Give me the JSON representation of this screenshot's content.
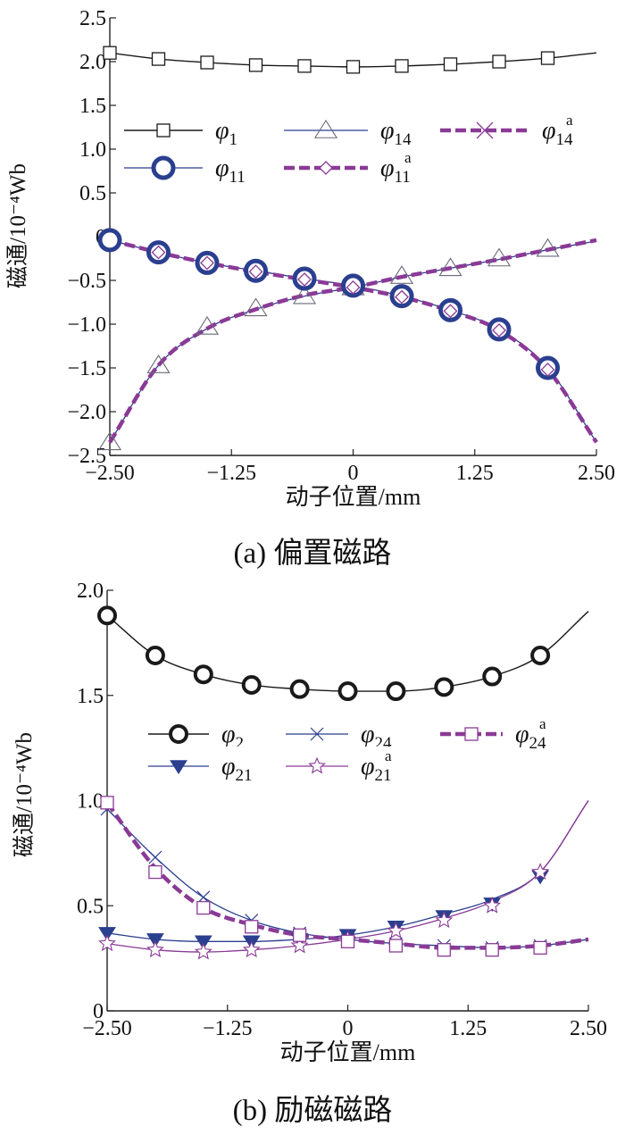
{
  "colors": {
    "black": "#1a1a1a",
    "blue": "#2b3f8f",
    "purple": "#8a3a96"
  },
  "chart_data": [
    {
      "type": "line",
      "caption": "(a)  偏置磁路",
      "xlabel": "动子位置/mm",
      "ylabel": "磁通/10⁻⁴Wb",
      "xticks": [
        "−2.50",
        "−1.25",
        "0",
        "1.25",
        "2.50"
      ],
      "xtick_values": [
        -2.5,
        -1.25,
        0,
        1.25,
        2.5
      ],
      "yticks": [
        "−2.5",
        "−2.0",
        "−1.5",
        "−1.0",
        "−0.5",
        "0",
        "0.5",
        "1.0",
        "1.5",
        "2.0",
        "2.5"
      ],
      "ytick_values": [
        -2.5,
        -2.0,
        -1.5,
        -1.0,
        -0.5,
        0,
        0.5,
        1.0,
        1.5,
        2.0,
        2.5
      ],
      "xlim": [
        -2.5,
        2.5
      ],
      "ylim": [
        -2.5,
        2.5
      ],
      "grid": false,
      "legend_position": "upper-middle",
      "series": [
        {
          "name": "φ1",
          "legend": [
            "φ",
            "1",
            ""
          ],
          "color": "#1a1a1a",
          "dash": "solid",
          "width": 1.4,
          "marker": "square",
          "msize": 7,
          "mwidth": 1.3,
          "x": [
            -2.5,
            -2.0,
            -1.5,
            -1.0,
            -0.5,
            0,
            0.5,
            1.0,
            1.5,
            2.0,
            2.5
          ],
          "y": [
            2.1,
            2.03,
            1.99,
            1.96,
            1.95,
            1.94,
            1.95,
            1.97,
            2.0,
            2.04,
            2.1
          ],
          "mx": [
            -2.5,
            -2.0,
            -1.5,
            -1.0,
            -0.5,
            0,
            0.5,
            1.0,
            1.5,
            2.0
          ],
          "my": [
            2.1,
            2.03,
            1.99,
            1.96,
            1.95,
            1.94,
            1.95,
            1.97,
            2.0,
            2.04
          ]
        },
        {
          "name": "φ14",
          "legend": [
            "φ",
            "14",
            ""
          ],
          "color": "#2b3f8f",
          "dash": "solid",
          "width": 1.3,
          "marker": "triangle",
          "msize": 11,
          "mwidth": 1.1,
          "mcolor": "#6a6a7a",
          "x": [
            -2.5,
            -2.0,
            -1.5,
            -1.0,
            -0.5,
            0,
            0.5,
            1.0,
            1.5,
            2.0,
            2.5
          ],
          "y": [
            -2.35,
            -1.47,
            -1.05,
            -0.83,
            -0.68,
            -0.58,
            -0.46,
            -0.36,
            -0.26,
            -0.15,
            -0.05
          ],
          "mx": [
            -2.5,
            -2.0,
            -1.5,
            -1.0,
            -0.5,
            0,
            0.5,
            1.0,
            1.5,
            2.0
          ],
          "my": [
            -2.35,
            -1.47,
            -1.03,
            -0.82,
            -0.68,
            -0.58,
            -0.45,
            -0.36,
            -0.25,
            -0.14
          ]
        },
        {
          "name": "φ14a",
          "legend": [
            "φ",
            "14",
            "a"
          ],
          "color": "#8a3a96",
          "dash": "12 5",
          "width": 4.5,
          "marker": "x",
          "msize": 9,
          "mwidth": 1.3,
          "x": [
            -2.5,
            -2.0,
            -1.5,
            -1.0,
            -0.5,
            0,
            0.5,
            1.0,
            1.5,
            2.0,
            2.5
          ],
          "y": [
            -2.35,
            -1.47,
            -1.05,
            -0.83,
            -0.67,
            -0.58,
            -0.46,
            -0.36,
            -0.26,
            -0.15,
            -0.04
          ],
          "mx": [],
          "my": []
        },
        {
          "name": "φ11",
          "legend": [
            "φ",
            "11",
            ""
          ],
          "color": "#2b3f8f",
          "dash": "solid",
          "width": 1.3,
          "marker": "circle",
          "msize": 11,
          "mwidth": 5,
          "x": [
            -2.5,
            -2.0,
            -1.5,
            -1.0,
            -0.5,
            0,
            0.5,
            1.0,
            1.5,
            2.0,
            2.5
          ],
          "y": [
            -0.04,
            -0.18,
            -0.3,
            -0.39,
            -0.48,
            -0.56,
            -0.68,
            -0.84,
            -1.06,
            -1.5,
            -2.35
          ],
          "mx": [
            -2.5,
            -2.0,
            -1.5,
            -1.0,
            -0.5,
            0,
            0.5,
            1.0,
            1.5,
            2.0
          ],
          "my": [
            -0.04,
            -0.18,
            -0.3,
            -0.39,
            -0.48,
            -0.56,
            -0.68,
            -0.84,
            -1.06,
            -1.5
          ]
        },
        {
          "name": "φ11a",
          "legend": [
            "φ",
            "11",
            "a"
          ],
          "color": "#8a3a96",
          "dash": "12 5",
          "width": 4.5,
          "marker": "diamond",
          "msize": 7,
          "mwidth": 1.3,
          "x": [
            -2.5,
            -2.0,
            -1.5,
            -1.0,
            -0.5,
            0,
            0.5,
            1.0,
            1.5,
            2.0,
            2.5
          ],
          "y": [
            -0.04,
            -0.18,
            -0.3,
            -0.4,
            -0.49,
            -0.58,
            -0.69,
            -0.85,
            -1.07,
            -1.52,
            -2.35
          ],
          "mx": [
            -2.0,
            -1.5,
            -1.0,
            -0.5,
            0,
            0.5,
            1.0,
            1.5,
            2.0
          ],
          "my": [
            -0.18,
            -0.3,
            -0.4,
            -0.49,
            -0.58,
            -0.69,
            -0.85,
            -1.07,
            -1.52
          ]
        }
      ]
    },
    {
      "type": "line",
      "caption": "(b)  励磁磁路",
      "xlabel": "动子位置/mm",
      "ylabel": "磁通/10⁻⁴Wb",
      "xticks": [
        "−2.50",
        "−1.25",
        "0",
        "1.25",
        "2.50"
      ],
      "xtick_values": [
        -2.5,
        -1.25,
        0,
        1.25,
        2.5
      ],
      "yticks": [
        "0",
        "0.5",
        "1.0",
        "1.5",
        "2.0"
      ],
      "ytick_values": [
        0,
        0.5,
        1.0,
        1.5,
        2.0
      ],
      "xlim": [
        -2.5,
        2.5
      ],
      "ylim": [
        0,
        2.0
      ],
      "grid": false,
      "legend_position": "middle",
      "series": [
        {
          "name": "φ2",
          "legend": [
            "φ",
            "2",
            ""
          ],
          "color": "#1a1a1a",
          "dash": "solid",
          "width": 1.4,
          "marker": "circle",
          "msize": 9,
          "mwidth": 4,
          "x": [
            -2.5,
            -2.0,
            -1.5,
            -1.0,
            -0.5,
            0,
            0.5,
            1.0,
            1.5,
            2.0,
            2.5
          ],
          "y": [
            1.88,
            1.69,
            1.6,
            1.55,
            1.53,
            1.52,
            1.52,
            1.54,
            1.59,
            1.69,
            1.9
          ],
          "mx": [
            -2.5,
            -2.0,
            -1.5,
            -1.0,
            -0.5,
            0,
            0.5,
            1.0,
            1.5,
            2.0
          ],
          "my": [
            1.88,
            1.69,
            1.6,
            1.55,
            1.53,
            1.52,
            1.52,
            1.54,
            1.59,
            1.69
          ]
        },
        {
          "name": "φ21",
          "legend": [
            "φ",
            "21",
            ""
          ],
          "color": "#2b3f8f",
          "dash": "solid",
          "width": 1.3,
          "marker": "triangle-down",
          "msize": 9,
          "mwidth": 1,
          "x": [
            -2.5,
            -2.0,
            -1.5,
            -1.0,
            -0.5,
            0,
            0.5,
            1.0,
            1.5,
            2.0,
            2.5
          ],
          "y": [
            0.37,
            0.34,
            0.33,
            0.33,
            0.34,
            0.36,
            0.4,
            0.46,
            0.53,
            0.66,
            1.0
          ],
          "mx": [
            -2.5,
            -2.0,
            -1.5,
            -1.0,
            -0.5,
            0,
            0.5,
            1.0,
            1.5,
            2.0
          ],
          "my": [
            0.37,
            0.34,
            0.33,
            0.33,
            0.34,
            0.36,
            0.4,
            0.45,
            0.51,
            0.64
          ]
        },
        {
          "name": "φ21a",
          "legend": [
            "φ",
            "21",
            "a"
          ],
          "color": "#8a3a96",
          "dash": "solid",
          "width": 1.3,
          "marker": "star",
          "msize": 9,
          "mwidth": 1.1,
          "x": [
            -2.5,
            -2.0,
            -1.5,
            -1.0,
            -0.5,
            0,
            0.5,
            1.0,
            1.5,
            2.0,
            2.5
          ],
          "y": [
            0.32,
            0.29,
            0.28,
            0.29,
            0.31,
            0.34,
            0.38,
            0.44,
            0.52,
            0.66,
            1.0
          ],
          "mx": [
            -2.5,
            -2.0,
            -1.5,
            -1.0,
            -0.5,
            0,
            0.5,
            1.0,
            1.5,
            2.0
          ],
          "my": [
            0.32,
            0.29,
            0.28,
            0.29,
            0.31,
            0.34,
            0.38,
            0.43,
            0.5,
            0.66
          ]
        },
        {
          "name": "φ24",
          "legend": [
            "φ",
            "24",
            ""
          ],
          "color": "#2b3f8f",
          "dash": "solid",
          "width": 1.3,
          "marker": "x",
          "msize": 7,
          "mwidth": 1.2,
          "x": [
            -2.5,
            -2.0,
            -1.5,
            -1.0,
            -0.5,
            0,
            0.5,
            1.0,
            1.5,
            2.0,
            2.5
          ],
          "y": [
            0.96,
            0.73,
            0.54,
            0.43,
            0.37,
            0.34,
            0.32,
            0.31,
            0.3,
            0.31,
            0.34
          ],
          "mx": [
            -2.5,
            -2.0,
            -1.5,
            -1.0,
            -0.5,
            0,
            0.5,
            1.0,
            1.5,
            2.0
          ],
          "my": [
            0.96,
            0.73,
            0.54,
            0.43,
            0.37,
            0.34,
            0.32,
            0.31,
            0.3,
            0.31
          ]
        },
        {
          "name": "φ24a",
          "legend": [
            "φ",
            "24",
            "a"
          ],
          "color": "#8a3a96",
          "dash": "12 5",
          "width": 4.5,
          "marker": "square",
          "msize": 7,
          "mwidth": 1.3,
          "x": [
            -2.5,
            -2.0,
            -1.5,
            -1.0,
            -0.5,
            0,
            0.5,
            1.0,
            1.5,
            2.0,
            2.5
          ],
          "y": [
            0.99,
            0.68,
            0.49,
            0.41,
            0.36,
            0.34,
            0.32,
            0.3,
            0.3,
            0.31,
            0.34
          ],
          "mx": [
            -2.5,
            -2.0,
            -1.5,
            -1.0,
            -0.5,
            0,
            0.5,
            1.0,
            1.5,
            2.0
          ],
          "my": [
            0.99,
            0.66,
            0.49,
            0.4,
            0.36,
            0.33,
            0.31,
            0.29,
            0.29,
            0.3
          ]
        }
      ]
    }
  ]
}
